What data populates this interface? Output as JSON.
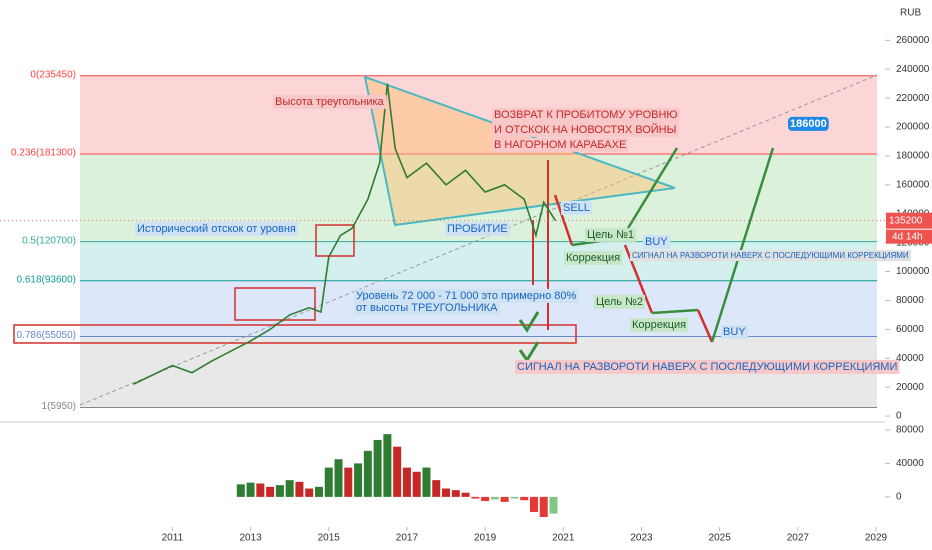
{
  "chart_data": {
    "type": "line",
    "currency": "RUB",
    "x": [
      2010.0,
      2011.0,
      2011.5,
      2012.0,
      2012.5,
      2013.0,
      2013.5,
      2014.0,
      2014.5,
      2014.8,
      2015.0,
      2015.3,
      2015.6,
      2016.0,
      2016.3,
      2016.5,
      2016.7,
      2017.0,
      2017.5,
      2018.0,
      2018.5,
      2019.0,
      2019.5,
      2020.0,
      2020.3,
      2020.5,
      2020.8
    ],
    "values": [
      22000,
      35000,
      30000,
      38000,
      45000,
      52000,
      60000,
      70000,
      75000,
      72000,
      110000,
      125000,
      130000,
      150000,
      175000,
      230000,
      185000,
      165000,
      175000,
      160000,
      170000,
      155000,
      160000,
      150000,
      125000,
      148000,
      135200
    ],
    "color": "#2e7d32",
    "xlim": [
      2006.59,
      2029.23
    ],
    "ylim": [
      -4800,
      287900
    ],
    "xticks": [
      2011,
      2013,
      2015,
      2017,
      2019,
      2021,
      2023,
      2025,
      2027,
      2029
    ],
    "yticks": [
      0,
      20000,
      40000,
      60000,
      80000,
      100000,
      120000,
      140000,
      160000,
      180000,
      200000,
      220000,
      240000,
      260000
    ],
    "last_price": 135200,
    "countdown": "4d 14h",
    "fib_levels": [
      {
        "value": 235450,
        "label": "0(235450)"
      },
      {
        "value": 181300,
        "label": "0.236(181300)"
      },
      {
        "value": 120700,
        "label": "0.5(120700)"
      },
      {
        "value": 93600,
        "label": "0.618(93600)"
      },
      {
        "value": 55050,
        "label": "0.786(55050)"
      },
      {
        "value": 5950,
        "label": "1(5950)"
      }
    ],
    "annotations": [
      "Высота треугольника",
      "ВОЗВРАТ К ПРОБИТОМУ УРОВНЮ",
      "И ОТСКОК НА НОВОСТЯХ ВОЙНЫ",
      "В НАГОРНОМ КАРАБАХЕ",
      "Исторический отскок от уровня",
      "ПРОБИТИЕ",
      "SELL",
      "Цель №1",
      "BUY",
      "Коррекция",
      "СИГНАЛ НА РАЗВОРОТИ НАВЕРХ С ПОСЛЕДУЮЩИМИ КОРРЕКЦИЯМИ",
      "Уровень 72 000 - 71 000 это примерно 80%",
      "от высоты ТРЕУГОЛЬНИКА",
      "Цель №2",
      "Коррекция",
      "BUY",
      "СИГНАЛ НА РАЗВОРОТИ НАВЕРХ С ПОСЛЕДУЮЩИМИ КОРРЕКЦИЯМИ",
      "186000"
    ],
    "macd": {
      "x": [
        2012.75,
        2013.0,
        2013.25,
        2013.5,
        2013.75,
        2014.0,
        2014.25,
        2014.5,
        2014.75,
        2015.0,
        2015.25,
        2015.5,
        2015.75,
        2016.0,
        2016.25,
        2016.5,
        2016.75,
        2017.0,
        2017.25,
        2017.5,
        2017.75,
        2018.0,
        2018.25,
        2018.5,
        2018.75,
        2019.0,
        2019.25,
        2019.5,
        2019.75,
        2020.0,
        2020.25,
        2020.5,
        2020.75
      ],
      "values": [
        15000,
        17000,
        16000,
        12000,
        14000,
        20000,
        18000,
        10000,
        12000,
        35000,
        45000,
        35000,
        40000,
        55000,
        68000,
        75000,
        60000,
        35000,
        30000,
        35000,
        20000,
        10000,
        8000,
        5000,
        -2000,
        -5000,
        -3000,
        -6000,
        -2000,
        -4000,
        -18000,
        -24000,
        -20000
      ],
      "ylim": [
        -36000,
        89500
      ],
      "yticks": [
        0,
        40000,
        80000
      ]
    }
  }
}
